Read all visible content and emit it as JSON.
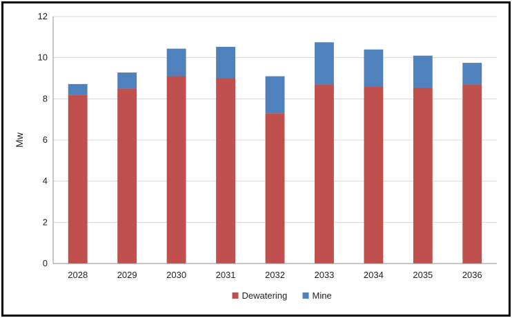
{
  "chart_data": {
    "type": "bar",
    "stacked": true,
    "categories": [
      "2028",
      "2029",
      "2030",
      "2031",
      "2032",
      "2033",
      "2034",
      "2035",
      "2036"
    ],
    "series": [
      {
        "name": "Dewatering",
        "color": "#C0504D",
        "values": [
          8.2,
          8.5,
          9.1,
          9.0,
          7.3,
          8.7,
          8.6,
          8.55,
          8.7
        ]
      },
      {
        "name": "Mine",
        "color": "#4F81BD",
        "values": [
          0.52,
          0.78,
          1.34,
          1.53,
          1.8,
          2.05,
          1.8,
          1.55,
          1.05
        ]
      }
    ],
    "title": "",
    "xlabel": "",
    "ylabel": "Mw",
    "ylim": [
      0,
      12
    ],
    "yticks": [
      0,
      2,
      4,
      6,
      8,
      10,
      12
    ],
    "grid": true,
    "legend_position": "bottom"
  }
}
